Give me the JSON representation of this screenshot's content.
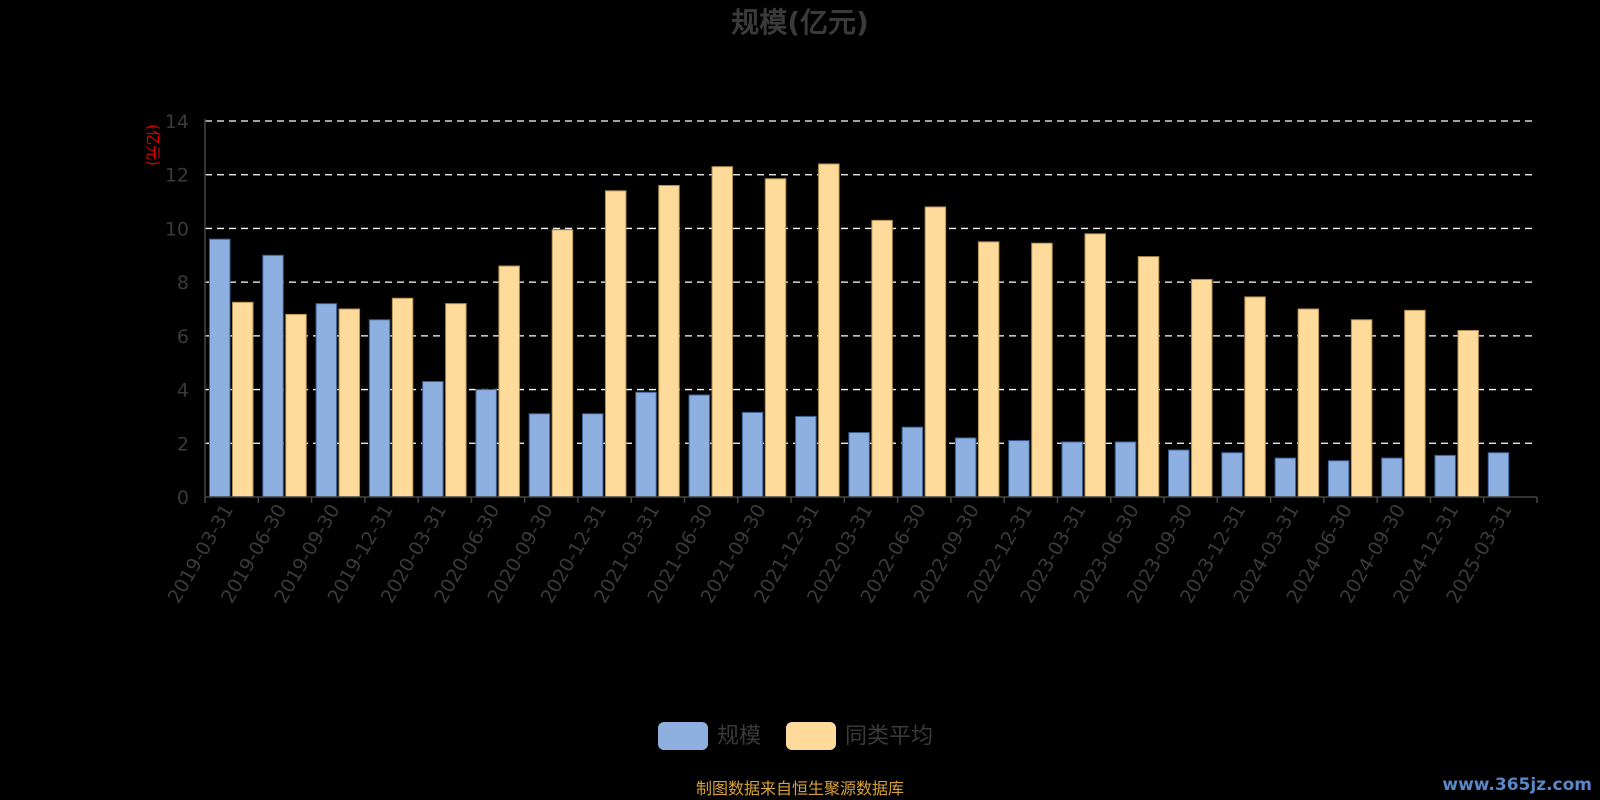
{
  "chart_data": {
    "type": "bar",
    "title": "规模(亿元)",
    "ylabel": "(亿元)",
    "ylim": [
      0,
      14
    ],
    "yticks": [
      0,
      2,
      4,
      6,
      8,
      10,
      12,
      14
    ],
    "grid": true,
    "legend_position": "bottom-center",
    "categories": [
      "2019-03-31",
      "2019-06-30",
      "2019-09-30",
      "2019-12-31",
      "2020-03-31",
      "2020-06-30",
      "2020-09-30",
      "2020-12-31",
      "2021-03-31",
      "2021-06-30",
      "2021-09-30",
      "2021-12-31",
      "2022-03-31",
      "2022-06-30",
      "2022-09-30",
      "2022-12-31",
      "2023-03-31",
      "2023-06-30",
      "2023-09-30",
      "2023-12-31",
      "2024-03-31",
      "2024-06-30",
      "2024-09-30",
      "2024-12-31",
      "2025-03-31"
    ],
    "series": [
      {
        "name": "规模",
        "color": "#8eb0e0",
        "values": [
          9.6,
          9.0,
          7.2,
          6.6,
          4.3,
          4.0,
          3.1,
          3.1,
          3.9,
          3.8,
          3.15,
          3.0,
          2.4,
          2.6,
          2.2,
          2.1,
          2.05,
          2.05,
          1.75,
          1.65,
          1.45,
          1.35,
          1.45,
          1.55,
          1.65
        ]
      },
      {
        "name": "同类平均",
        "color": "#ffdb9b",
        "values": [
          7.25,
          6.8,
          7.0,
          7.4,
          7.2,
          8.6,
          9.95,
          11.4,
          11.6,
          12.3,
          11.85,
          12.4,
          10.3,
          10.8,
          9.5,
          9.45,
          9.8,
          8.95,
          8.1,
          7.45,
          7.0,
          6.6,
          6.95,
          6.2,
          null
        ]
      }
    ]
  },
  "footer": {
    "source_note": "制图数据来自恒生聚源数据库",
    "watermark": "www.365jz.com"
  }
}
